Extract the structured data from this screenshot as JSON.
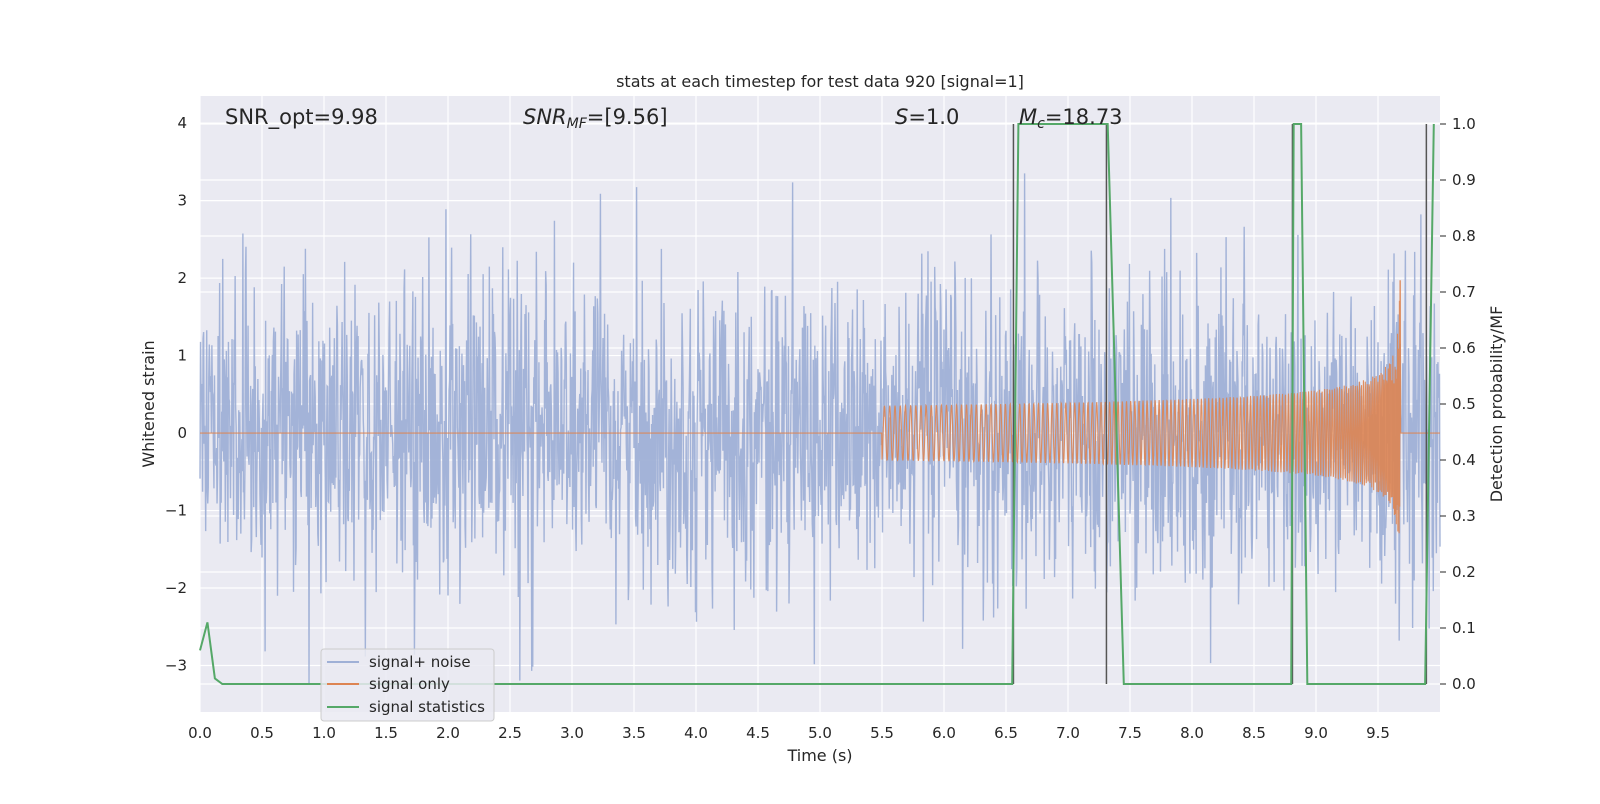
{
  "chart_data": {
    "type": "line",
    "title": "stats at each timestep for test data 920 [signal=1]",
    "xlabel": "Time (s)",
    "ylabel": "Whitened strain",
    "y2label": "Detection probability/MF",
    "xlim": [
      0.0,
      10.0
    ],
    "ylim": [
      -3.6,
      4.35
    ],
    "y2lim": [
      -0.05,
      1.05
    ],
    "xticks": [
      0.0,
      0.5,
      1.0,
      1.5,
      2.0,
      2.5,
      3.0,
      3.5,
      4.0,
      4.5,
      5.0,
      5.5,
      6.0,
      6.5,
      7.0,
      7.5,
      8.0,
      8.5,
      9.0,
      9.5
    ],
    "xtick_labels": [
      "0.0",
      "0.5",
      "1.0",
      "1.5",
      "2.0",
      "2.5",
      "3.0",
      "3.5",
      "4.0",
      "4.5",
      "5.0",
      "5.5",
      "6.0",
      "6.5",
      "7.0",
      "7.5",
      "8.0",
      "8.5",
      "9.0",
      "9.5"
    ],
    "yticks": [
      -3,
      -2,
      -1,
      0,
      1,
      2,
      3,
      4
    ],
    "ytick_labels": [
      "−3",
      "−2",
      "−1",
      "0",
      "1",
      "2",
      "3",
      "4"
    ],
    "y2ticks": [
      0.0,
      0.1,
      0.2,
      0.3,
      0.4,
      0.5,
      0.6,
      0.7,
      0.8,
      0.9,
      1.0
    ],
    "y2tick_labels": [
      "0.0",
      "0.1",
      "0.2",
      "0.3",
      "0.4",
      "0.5",
      "0.6",
      "0.7",
      "0.8",
      "0.9",
      "1.0"
    ],
    "grid": true,
    "legend": {
      "position": "lower-left",
      "entries": [
        "signal+ noise",
        "signal only",
        "signal statistics"
      ]
    },
    "annotations": {
      "snr_opt": "SNR_opt=9.98",
      "snr_mf_base": "SNR",
      "snr_mf_sub": "MF",
      "snr_mf_value": "=[9.56]",
      "s_base": "S",
      "s_value": "=1.0",
      "mc_base": "M",
      "mc_sub": "c",
      "mc_value": "=18.73"
    },
    "series": [
      {
        "name": "signal+ noise",
        "color": "#9fb0d6",
        "description": "whitened noisy strain, approx. gaussian noise with std ~0.9 spanning roughly -3.2 to 4.0 over 0-10 s"
      },
      {
        "name": "signal only",
        "color": "#dd8452",
        "chirp": {
          "start_time": 5.5,
          "merger_time": 9.68,
          "peak_amplitude": 2.0
        }
      },
      {
        "name": "signal statistics",
        "color": "#55a868",
        "x": [
          0.0,
          0.06,
          0.12,
          0.18,
          6.55,
          6.6,
          7.32,
          7.45,
          8.8,
          8.82,
          8.88,
          8.93,
          9.88,
          9.95
        ],
        "y": [
          0.06,
          0.11,
          0.01,
          0.0,
          0.0,
          1.0,
          1.0,
          0.0,
          0.0,
          1.0,
          1.0,
          0.0,
          0.0,
          1.0
        ]
      }
    ],
    "vertical_lines": {
      "color": "#555555",
      "x": [
        6.56,
        7.31,
        8.81,
        9.89
      ]
    }
  }
}
